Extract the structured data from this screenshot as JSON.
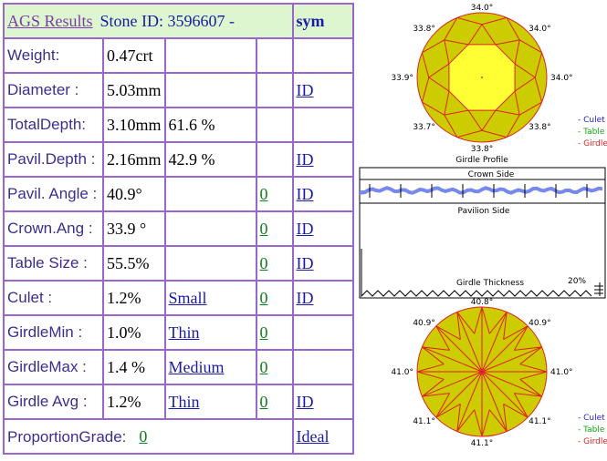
{
  "header": {
    "title": "AGS  Results",
    "stone_id": "Stone ID:  3596607 -",
    "sym": "sym"
  },
  "rows": [
    {
      "label": "Weight:",
      "value": "0.47crt",
      "extra": "",
      "link": "",
      "zero": "",
      "id": ""
    },
    {
      "label": "Diameter :",
      "value": "5.03mm",
      "extra": "",
      "link": "",
      "zero": "",
      "id": "ID"
    },
    {
      "label": "TotalDepth:",
      "value": "3.10mm",
      "extra": "61.6 %",
      "link": "",
      "zero": "",
      "id": ""
    },
    {
      "label": "Pavil.Depth :",
      "value": "2.16mm",
      "extra": "42.9 %",
      "link": "",
      "zero": "",
      "id": "ID"
    },
    {
      "label": "Pavil. Angle :",
      "value": "40.9°",
      "extra": "",
      "link": "",
      "zero": "0",
      "id": "ID"
    },
    {
      "label": "Crown.Ang :",
      "value": "33.9 °",
      "extra": "",
      "link": "",
      "zero": "0",
      "id": "ID"
    },
    {
      "label": "Table Size :",
      "value": "55.5%",
      "extra": "",
      "link": "",
      "zero": "0",
      "id": "ID"
    },
    {
      "label": "Culet :",
      "value": "1.2%",
      "extra": "",
      "link": "Small",
      "zero": "0",
      "id": "ID"
    },
    {
      "label": "GirdleMin :",
      "value": "1.0%",
      "extra": "",
      "link": "Thin",
      "zero": "0",
      "id": ""
    },
    {
      "label": "GirdleMax :",
      "value": "1.4 %",
      "extra": "",
      "link": "Medium",
      "zero": "0",
      "id": ""
    },
    {
      "label": "Girdle Avg :",
      "value": "1.2%",
      "extra": "",
      "link": "Thin",
      "zero": "0",
      "id": "ID"
    }
  ],
  "proportion": {
    "label": "ProportionGrade:",
    "value": "0",
    "grade": "Ideal"
  },
  "crown_diagram": {
    "angles": {
      "top": "34.0°",
      "top_left": "33.8°",
      "top_right": "34.0°",
      "left": "33.9°",
      "right": "34.0°",
      "bottom_left": "33.7°",
      "bottom_right": "33.8°",
      "bottom": "33.8°"
    },
    "legend": [
      "- Culet",
      "- Table",
      "- Girdle"
    ],
    "legend_colors": [
      "#2222cc",
      "#11aa11",
      "#dd2222"
    ],
    "fill": "#cccc00",
    "table_fill": "#ffff33",
    "facet_color": "#dd2222"
  },
  "profile": {
    "title": "Girdle Profile",
    "crown_side": "Crown Side",
    "pavilion_side": "Pavilion Side",
    "thickness": "Girdle Thickness",
    "percent": "20%"
  },
  "pavilion_diagram": {
    "angles": {
      "top": "40.8°",
      "top_left": "40.9°",
      "top_right": "40.9°",
      "left": "41.0°",
      "right": "41.0°",
      "bottom_left": "41.1°",
      "bottom_right": "41.1°",
      "bottom": "41.1°"
    },
    "legend": [
      "- Culet",
      "- Table",
      "- Girdle"
    ]
  }
}
